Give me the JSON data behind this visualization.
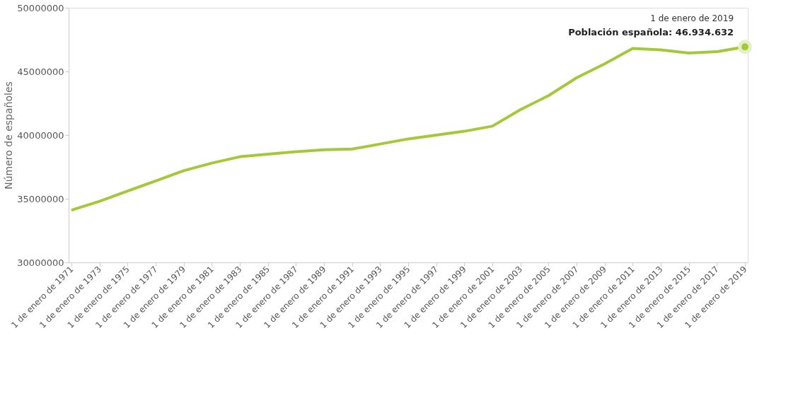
{
  "chart_data": {
    "type": "line",
    "ylabel": "Número de españoles",
    "categories": [
      "1 de enero de 1971",
      "1 de enero de 1973",
      "1 de enero de 1975",
      "1 de enero de 1977",
      "1 de enero de 1979",
      "1 de enero de 1981",
      "1 de enero de 1983",
      "1 de enero de 1985",
      "1 de enero de 1987",
      "1 de enero de 1989",
      "1 de enero de 1991",
      "1 de enero de 1993",
      "1 de enero de 1995",
      "1 de enero de 1997",
      "1 de enero de 1999",
      "1 de enero de 2001",
      "1 de enero de 2003",
      "1 de enero de 2005",
      "1 de enero de 2007",
      "1 de enero de 2009",
      "1 de enero de 2011",
      "1 de enero de 2013",
      "1 de enero de 2015",
      "1 de enero de 2017",
      "1 de enero de 2019"
    ],
    "series": [
      {
        "color": "#a5c83a",
        "values": [
          34100000,
          34800000,
          35600000,
          36400000,
          37200000,
          37800000,
          38300000,
          38500000,
          38700000,
          38850000,
          38900000,
          39300000,
          39700000,
          40000000,
          40300000,
          40700000,
          42000000,
          43100000,
          44500000,
          45600000,
          46800000,
          46700000,
          46450000,
          46550000,
          46934632
        ]
      }
    ],
    "ylim": [
      30000000,
      50000000
    ],
    "yticks": [
      30000000,
      35000000,
      40000000,
      45000000,
      50000000
    ],
    "grid": false,
    "marker": "none",
    "line_style": "solid",
    "annotations": [
      "1 de enero de 2019",
      {
        "text": "Población española: 46.934.632",
        "x": "1 de enero de 2019",
        "y": 46934632
      }
    ]
  }
}
